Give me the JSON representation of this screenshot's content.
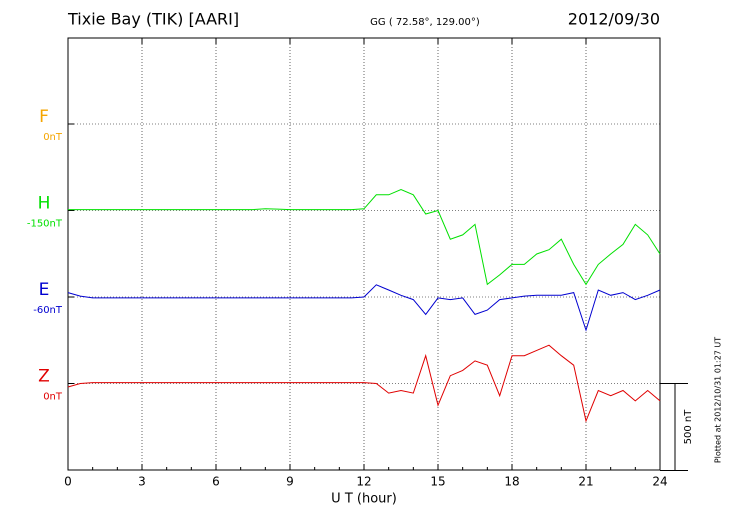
{
  "chart_data": {
    "type": "line",
    "title": "Tixie Bay (TIK)  [AARI]",
    "subtitle": "GG ( 72.58°, 129.00°)",
    "date": "2012/09/30",
    "side_note": "Plotted at 2012/10/31 01:27 UT",
    "xlabel": "U T (hour)",
    "xlim": [
      0,
      24
    ],
    "xticks": [
      0,
      3,
      6,
      9,
      12,
      15,
      18,
      21,
      24
    ],
    "grid": true,
    "scale_bar": {
      "value": 500,
      "label": "500 nT"
    },
    "x": [
      0,
      0.5,
      1,
      1.5,
      2,
      2.5,
      3,
      3.5,
      4,
      4.5,
      5,
      5.5,
      6,
      6.5,
      7,
      7.5,
      8,
      8.5,
      9,
      9.5,
      10,
      10.5,
      11,
      11.5,
      12,
      12.5,
      13,
      13.5,
      14,
      14.5,
      15,
      15.5,
      16,
      16.5,
      17,
      17.5,
      18,
      18.5,
      19,
      19.5,
      20,
      20.5,
      21,
      21.5,
      22,
      22.5,
      23,
      23.5,
      24
    ],
    "series": [
      {
        "name": "F",
        "color": "#f5a500",
        "baseline": {
          "value": 0,
          "label": "0nT"
        },
        "values": [
          null,
          null,
          null,
          null,
          null,
          null,
          null,
          null,
          null,
          null,
          null,
          null,
          null,
          null,
          null,
          null,
          null,
          null,
          null,
          null,
          null,
          null,
          null,
          null,
          null,
          null,
          null,
          null,
          null,
          null,
          null,
          null,
          null,
          null,
          null,
          null,
          null,
          null,
          null,
          null,
          null,
          null,
          null,
          null,
          null,
          null,
          null,
          null,
          null
        ]
      },
      {
        "name": "H",
        "color": "#00e000",
        "baseline": {
          "value": -150,
          "label": "-150nT"
        },
        "values": [
          5,
          5,
          5,
          5,
          5,
          5,
          5,
          5,
          5,
          5,
          5,
          5,
          5,
          5,
          5,
          5,
          10,
          8,
          5,
          5,
          5,
          5,
          5,
          5,
          10,
          90,
          90,
          120,
          90,
          -20,
          0,
          -165,
          -140,
          -80,
          -425,
          -370,
          -310,
          -310,
          -250,
          -225,
          -165,
          -310,
          -425,
          -310,
          -250,
          -195,
          -80,
          -140,
          -250
        ]
      },
      {
        "name": "E",
        "color": "#0000d0",
        "baseline": {
          "value": -60,
          "label": "-60nT"
        },
        "values": [
          25,
          5,
          -5,
          -5,
          -5,
          -5,
          -5,
          -5,
          -5,
          -5,
          -5,
          -5,
          -5,
          -5,
          -5,
          -5,
          -5,
          -5,
          -5,
          -5,
          -5,
          -5,
          -5,
          -5,
          0,
          70,
          40,
          10,
          -15,
          -100,
          -5,
          -15,
          -5,
          -100,
          -75,
          -15,
          -5,
          5,
          10,
          10,
          10,
          25,
          -190,
          40,
          10,
          25,
          -15,
          10,
          40
        ]
      },
      {
        "name": "Z",
        "color": "#e00000",
        "baseline": {
          "value": 0,
          "label": "0nT"
        },
        "values": [
          -20,
          0,
          5,
          5,
          5,
          5,
          5,
          5,
          5,
          5,
          5,
          5,
          5,
          5,
          5,
          5,
          5,
          5,
          5,
          5,
          5,
          5,
          5,
          5,
          5,
          0,
          -55,
          -40,
          -55,
          160,
          -125,
          45,
          75,
          130,
          105,
          -70,
          160,
          160,
          190,
          220,
          160,
          105,
          -215,
          -40,
          -70,
          -40,
          -100,
          -40,
          -100
        ]
      }
    ]
  }
}
